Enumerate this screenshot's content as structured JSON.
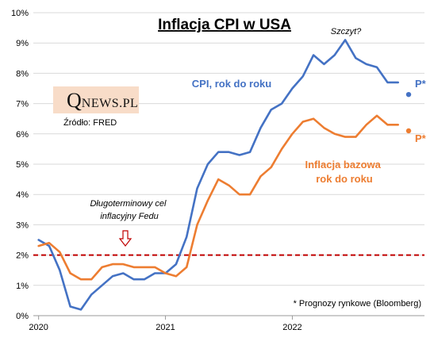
{
  "logo": {
    "q": "Q",
    "rest": "NEWS.PL"
  },
  "source": "Źródło: FRED",
  "chart_data": {
    "type": "line",
    "title": "Inflacja CPI w USA",
    "ylim": [
      0,
      10
    ],
    "y_ticks": [
      "0%",
      "1%",
      "2%",
      "3%",
      "4%",
      "5%",
      "6%",
      "7%",
      "8%",
      "9%",
      "10%"
    ],
    "x_ticks": [
      {
        "label": "2020",
        "x": 0
      },
      {
        "label": "2021",
        "x": 12
      },
      {
        "label": "2022",
        "x": 24
      }
    ],
    "grid": true,
    "target_line": {
      "value": 2.0,
      "label": "Długoterminowy cel inflacyjny Fedu",
      "color": "#c00000"
    },
    "annotations": {
      "peak": "Szczyt?",
      "footnote": "* Prognozy rynkowe (Bloomberg)"
    },
    "series": [
      {
        "name": "CPI, rok do roku",
        "color": "#4472c4",
        "x": [
          0,
          1,
          2,
          3,
          4,
          5,
          6,
          7,
          8,
          9,
          10,
          11,
          12,
          13,
          14,
          15,
          16,
          17,
          18,
          19,
          20,
          21,
          22,
          23,
          24,
          25,
          26,
          27,
          28,
          29,
          30,
          31,
          32,
          33,
          34
        ],
        "values": [
          2.5,
          2.3,
          1.5,
          0.3,
          0.2,
          0.7,
          1.0,
          1.3,
          1.4,
          1.2,
          1.2,
          1.4,
          1.4,
          1.7,
          2.6,
          4.2,
          5.0,
          5.4,
          5.4,
          5.3,
          5.4,
          6.2,
          6.8,
          7.0,
          7.5,
          7.9,
          8.6,
          8.3,
          8.6,
          9.1,
          8.5,
          8.3,
          8.2,
          7.7,
          7.7
        ],
        "forecast": {
          "x": 35,
          "value": 7.3,
          "label": "P*"
        }
      },
      {
        "name": "Inflacja bazowa rok do roku",
        "color": "#ed7d31",
        "x": [
          0,
          1,
          2,
          3,
          4,
          5,
          6,
          7,
          8,
          9,
          10,
          11,
          12,
          13,
          14,
          15,
          16,
          17,
          18,
          19,
          20,
          21,
          22,
          23,
          24,
          25,
          26,
          27,
          28,
          29,
          30,
          31,
          32,
          33,
          34
        ],
        "values": [
          2.3,
          2.4,
          2.1,
          1.4,
          1.2,
          1.2,
          1.6,
          1.7,
          1.7,
          1.6,
          1.6,
          1.6,
          1.4,
          1.3,
          1.6,
          3.0,
          3.8,
          4.5,
          4.3,
          4.0,
          4.0,
          4.6,
          4.9,
          5.5,
          6.0,
          6.4,
          6.5,
          6.2,
          6.0,
          5.9,
          5.9,
          6.3,
          6.6,
          6.3,
          6.3
        ],
        "forecast": {
          "x": 35,
          "value": 6.1,
          "label": "P*"
        }
      }
    ],
    "series_labels": {
      "cpi": [
        "CPI, rok do roku"
      ],
      "core": [
        "Inflacja bazowa",
        "rok do roku"
      ]
    }
  }
}
